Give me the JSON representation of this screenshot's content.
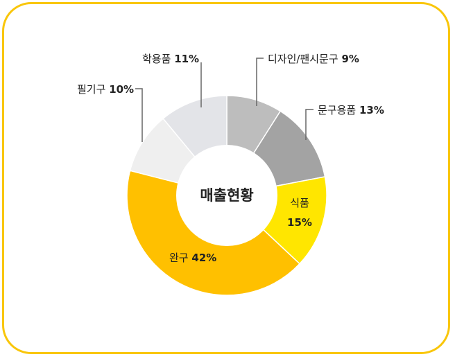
{
  "chart_data": {
    "type": "pie",
    "style": "donut",
    "center_label": "매출현황",
    "slices": [
      {
        "label": "디자인/팬시문구",
        "value": 9,
        "value_text": "9%",
        "color": "#bdbdbd"
      },
      {
        "label": "문구용품",
        "value": 13,
        "value_text": "13%",
        "color": "#a3a3a3"
      },
      {
        "label": "식품",
        "value": 15,
        "value_text": "15%",
        "color": "#ffe600"
      },
      {
        "label": "완구",
        "value": 42,
        "value_text": "42%",
        "color": "#ffc000"
      },
      {
        "label": "필기구",
        "value": 10,
        "value_text": "10%",
        "color": "#efefef"
      },
      {
        "label": "학용품",
        "value": 11,
        "value_text": "11%",
        "color": "#e3e4e8"
      }
    ],
    "border_color": "#f9c60a"
  }
}
